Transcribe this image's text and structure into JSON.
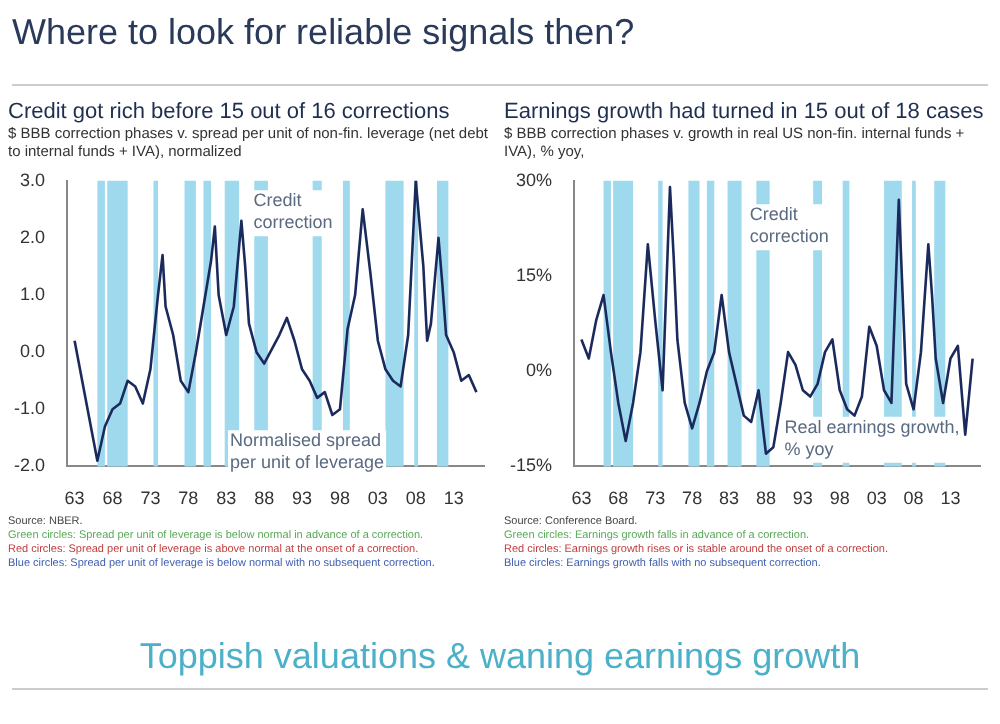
{
  "chart_data": [
    {
      "type": "line",
      "title": "Credit got rich before 15 out of 16 corrections",
      "subtitle": "$ BBB correction phases v. spread per unit of non-fin. leverage (net debt to internal funds + IVA), normalized",
      "annotations": [
        "Where to look for reliable signals then?",
        {
          "text": "Credit correction",
          "x": 1986.6,
          "y": 2.8
        },
        {
          "text": "Normalised spread per unit of leverage",
          "x": 1983.5,
          "y": -1.4
        },
        "Source: NBER.",
        "Green circles: Spread per unit of leverage is below normal in advance of a correction.",
        "Red circles: Spread per unit of leverage is above normal at the onset of a correction.",
        "Blue circles: Spread per unit of leverage is below normal with no subsequent correction."
      ],
      "series": [
        {
          "color": "#1b2a5c",
          "x": [
            1963,
            1964,
            1965,
            1966,
            1967,
            1968,
            1969,
            1970,
            1971,
            1972,
            1973,
            1974,
            1974.6,
            1975,
            1976,
            1977,
            1978,
            1979,
            1980,
            1981,
            1981.5,
            1982,
            1983,
            1984,
            1985,
            1985.5,
            1986,
            1987,
            1988,
            1990,
            1991,
            1992,
            1993,
            1994,
            1995,
            1996,
            1997,
            1998,
            1999,
            2000,
            2001,
            2002,
            2003,
            2004,
            2005,
            2006,
            2007,
            2008,
            2009,
            2009.5,
            2010,
            2011,
            2011.5,
            2012,
            2013,
            2014,
            2015,
            2016
          ],
          "values": [
            0.2,
            -0.5,
            -1.2,
            -1.9,
            -1.3,
            -1.0,
            -0.9,
            -0.5,
            -0.6,
            -0.9,
            -0.3,
            1.0,
            1.7,
            0.8,
            0.3,
            -0.5,
            -0.7,
            0.0,
            0.8,
            1.6,
            2.2,
            1.0,
            0.3,
            0.8,
            2.3,
            1.5,
            0.5,
            0.0,
            -0.2,
            0.3,
            0.6,
            0.2,
            -0.3,
            -0.5,
            -0.8,
            -0.7,
            -1.1,
            -1.0,
            0.4,
            1.0,
            2.5,
            1.4,
            0.2,
            -0.3,
            -0.5,
            -0.6,
            0.3,
            3.0,
            1.5,
            0.2,
            0.5,
            2.0,
            1.2,
            0.3,
            0.0,
            -0.5,
            -0.4,
            -0.7
          ]
        }
      ],
      "bands": [
        {
          "axis": "x",
          "from": 1966,
          "to": 1967,
          "color": "#9fd9ee"
        },
        {
          "axis": "x",
          "from": 1967.3,
          "to": 1970,
          "color": "#9fd9ee"
        },
        {
          "axis": "x",
          "from": 1973.4,
          "to": 1974,
          "color": "#9fd9ee"
        },
        {
          "axis": "x",
          "from": 1977.5,
          "to": 1979,
          "color": "#9fd9ee"
        },
        {
          "axis": "x",
          "from": 1980,
          "to": 1981,
          "color": "#9fd9ee"
        },
        {
          "axis": "x",
          "from": 1982.8,
          "to": 1984.7,
          "color": "#9fd9ee"
        },
        {
          "axis": "x",
          "from": 1986.7,
          "to": 1988.5,
          "color": "#9fd9ee"
        },
        {
          "axis": "x",
          "from": 1994.4,
          "to": 1995.6,
          "color": "#9fd9ee"
        },
        {
          "axis": "x",
          "from": 1998.4,
          "to": 1999.3,
          "color": "#9fd9ee"
        },
        {
          "axis": "x",
          "from": 2004,
          "to": 2006.4,
          "color": "#9fd9ee"
        },
        {
          "axis": "x",
          "from": 2007.8,
          "to": 2008.3,
          "color": "#9fd9ee"
        },
        {
          "axis": "x",
          "from": 2010.8,
          "to": 2012.3,
          "color": "#9fd9ee"
        }
      ],
      "xlim": [
        1962,
        2017
      ],
      "xticks": [
        {
          "value": 1963,
          "label": "63"
        },
        {
          "value": 1968,
          "label": "68"
        },
        {
          "value": 1973,
          "label": "73"
        },
        {
          "value": 1978,
          "label": "78"
        },
        {
          "value": 1983,
          "label": "83"
        },
        {
          "value": 1988,
          "label": "88"
        },
        {
          "value": 1993,
          "label": "93"
        },
        {
          "value": 1998,
          "label": "98"
        },
        {
          "value": 2003,
          "label": "03"
        },
        {
          "value": 2008,
          "label": "08"
        },
        {
          "value": 2013,
          "label": "13"
        }
      ],
      "ylim": [
        -2,
        3
      ],
      "yticks": [
        {
          "value": -2,
          "label": "-2.0"
        },
        {
          "value": -1,
          "label": "-1.0"
        },
        {
          "value": 0,
          "label": "0.0"
        },
        {
          "value": 1,
          "label": "1.0"
        },
        {
          "value": 2,
          "label": "2.0"
        },
        {
          "value": 3,
          "label": "3.0"
        }
      ],
      "legend": false,
      "grid": false
    },
    {
      "type": "line",
      "title": "Earnings growth had turned in 15 out of 18 cases",
      "subtitle": "$ BBB correction phases v. growth in real US non-fin. internal funds + IVA), % yoy,",
      "annotations": [
        {
          "text": "Credit correction",
          "x": 1985.8,
          "y": 26
        },
        {
          "text": "Real earnings growth, % yoy",
          "x": 1990.5,
          "y": -7.5
        },
        "Source: Conference Board.",
        "Green circles: Earnings growth falls in advance of a correction.",
        "Red circles: Earnings growth rises or is stable around the onset of a correction.",
        "Blue circles: Earnings growth falls with no subsequent correction.",
        "Toppish valuations & waning earnings growth"
      ],
      "series": [
        {
          "color": "#1b2a5c",
          "x": [
            1963,
            1964,
            1965,
            1966,
            1967,
            1968,
            1969,
            1970,
            1971,
            1972,
            1973,
            1974,
            1975,
            1975.5,
            1976,
            1977,
            1978,
            1979,
            1980,
            1981,
            1982,
            1983,
            1984,
            1985,
            1986,
            1987,
            1988,
            1989,
            1990,
            1991,
            1992,
            1993,
            1994,
            1995,
            1996,
            1997,
            1998,
            1999,
            2000,
            2001,
            2002,
            2003,
            2004,
            2005,
            2006,
            2007,
            2008,
            2009,
            2010,
            2010.5,
            2011,
            2012,
            2013,
            2014,
            2015,
            2016
          ],
          "values": [
            5,
            2,
            8,
            12,
            3,
            -5,
            -11,
            -5,
            3,
            20,
            8,
            -3,
            29,
            18,
            5,
            -5,
            -9,
            -5,
            0,
            3,
            12,
            3,
            -2,
            -7,
            -8,
            -3,
            -13,
            -12,
            -5,
            3,
            1,
            -3,
            -4,
            -2,
            3,
            5,
            -3,
            -6,
            -7,
            -4,
            7,
            4,
            -3,
            -5,
            27,
            -2,
            -6,
            3,
            20,
            12,
            2,
            -5,
            2,
            4,
            -10,
            2
          ]
        }
      ],
      "bands": [
        {
          "axis": "x",
          "from": 1966,
          "to": 1967,
          "color": "#9fd9ee"
        },
        {
          "axis": "x",
          "from": 1967.3,
          "to": 1970,
          "color": "#9fd9ee"
        },
        {
          "axis": "x",
          "from": 1973.4,
          "to": 1974,
          "color": "#9fd9ee"
        },
        {
          "axis": "x",
          "from": 1977.5,
          "to": 1979,
          "color": "#9fd9ee"
        },
        {
          "axis": "x",
          "from": 1980,
          "to": 1981,
          "color": "#9fd9ee"
        },
        {
          "axis": "x",
          "from": 1982.8,
          "to": 1984.7,
          "color": "#9fd9ee"
        },
        {
          "axis": "x",
          "from": 1986.7,
          "to": 1988.5,
          "color": "#9fd9ee"
        },
        {
          "axis": "x",
          "from": 1994.4,
          "to": 1995.6,
          "color": "#9fd9ee"
        },
        {
          "axis": "x",
          "from": 1998.4,
          "to": 1999.3,
          "color": "#9fd9ee"
        },
        {
          "axis": "x",
          "from": 2004,
          "to": 2006.4,
          "color": "#9fd9ee"
        },
        {
          "axis": "x",
          "from": 2007.8,
          "to": 2008.3,
          "color": "#9fd9ee"
        },
        {
          "axis": "x",
          "from": 2010.8,
          "to": 2012.3,
          "color": "#9fd9ee"
        }
      ],
      "xlim": [
        1962,
        2017
      ],
      "xticks": [
        {
          "value": 1963,
          "label": "63"
        },
        {
          "value": 1968,
          "label": "68"
        },
        {
          "value": 1973,
          "label": "73"
        },
        {
          "value": 1978,
          "label": "78"
        },
        {
          "value": 1983,
          "label": "83"
        },
        {
          "value": 1988,
          "label": "88"
        },
        {
          "value": 1993,
          "label": "93"
        },
        {
          "value": 1998,
          "label": "98"
        },
        {
          "value": 2003,
          "label": "03"
        },
        {
          "value": 2008,
          "label": "08"
        },
        {
          "value": 2013,
          "label": "13"
        }
      ],
      "ylim": [
        -15,
        30
      ],
      "yticks": [
        {
          "value": -15,
          "label": "-15%"
        },
        {
          "value": 0,
          "label": "0%"
        },
        {
          "value": 15,
          "label": "15%"
        },
        {
          "value": 30,
          "label": "30%"
        }
      ],
      "legend": false,
      "grid": false
    }
  ]
}
